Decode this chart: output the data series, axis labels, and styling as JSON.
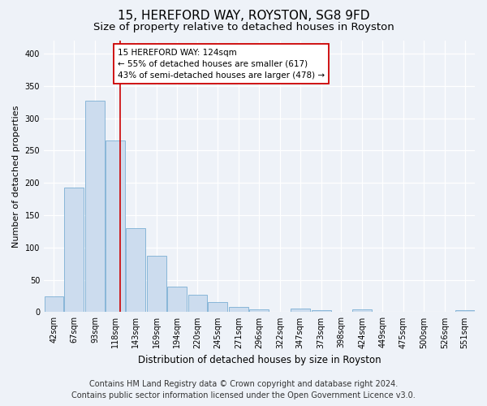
{
  "title": "15, HEREFORD WAY, ROYSTON, SG8 9FD",
  "subtitle": "Size of property relative to detached houses in Royston",
  "xlabel": "Distribution of detached houses by size in Royston",
  "ylabel": "Number of detached properties",
  "bar_color": "#ccdcee",
  "bar_edge_color": "#7bafd4",
  "vline_color": "#cc0000",
  "vline_x": 124,
  "annotation_line1": "15 HEREFORD WAY: 124sqm",
  "annotation_line2": "← 55% of detached houses are smaller (617)",
  "annotation_line3": "43% of semi-detached houses are larger (478) →",
  "categories": [
    42,
    67,
    93,
    118,
    143,
    169,
    194,
    220,
    245,
    271,
    296,
    322,
    347,
    373,
    398,
    424,
    449,
    475,
    500,
    526,
    551
  ],
  "values": [
    25,
    193,
    327,
    265,
    130,
    87,
    40,
    27,
    15,
    8,
    4,
    0,
    5,
    3,
    0,
    4,
    0,
    0,
    0,
    0,
    3
  ],
  "bin_width": 25,
  "ylim": [
    0,
    420
  ],
  "yticks": [
    0,
    50,
    100,
    150,
    200,
    250,
    300,
    350,
    400
  ],
  "footer_line1": "Contains HM Land Registry data © Crown copyright and database right 2024.",
  "footer_line2": "Contains public sector information licensed under the Open Government Licence v3.0.",
  "background_color": "#eef2f8",
  "plot_bg_color": "#eef2f8",
  "grid_color": "#ffffff",
  "title_fontsize": 11,
  "subtitle_fontsize": 9.5,
  "footer_fontsize": 7,
  "annotation_fontsize": 7.5,
  "ylabel_fontsize": 8,
  "xlabel_fontsize": 8.5,
  "tick_fontsize": 7
}
